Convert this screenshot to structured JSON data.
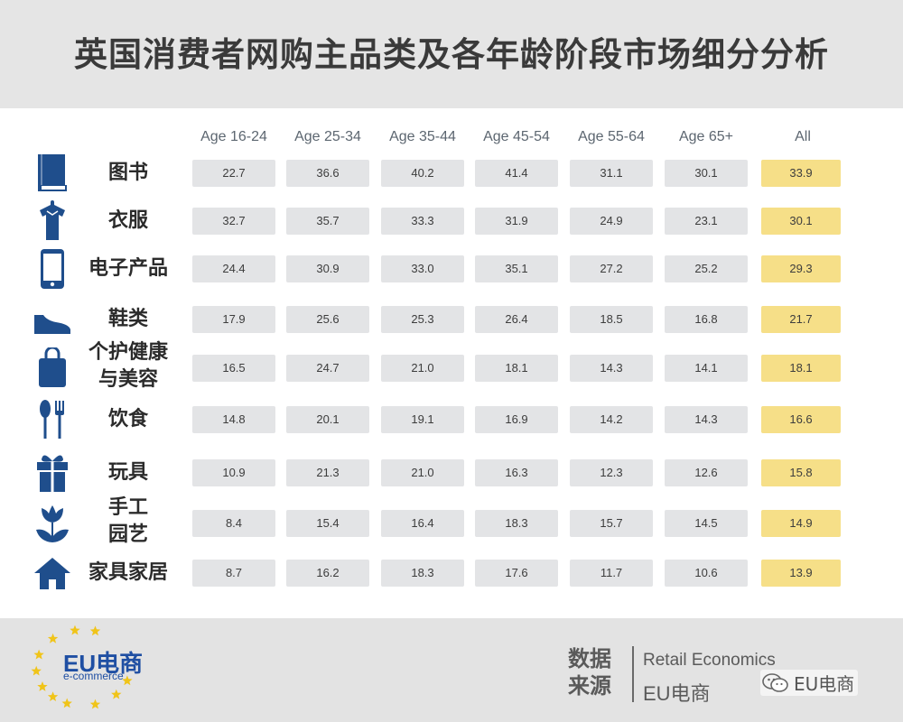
{
  "title": "英国消费者网购主品类及各年龄阶段市场细分分析",
  "colors": {
    "icon": "#1f4e8c",
    "cell": "#e3e4e6",
    "highlight": "#f6df88",
    "star": "#f0c419",
    "logo": "#1f4fa3"
  },
  "chart_data": {
    "type": "table",
    "columns": [
      "Age 16-24",
      "Age 25-34",
      "Age 35-44",
      "Age 45-54",
      "Age 55-64",
      "Age 65+",
      "All"
    ],
    "rows": [
      {
        "label": "图书",
        "icon": "book-icon",
        "values": [
          "22.7",
          "36.6",
          "40.2",
          "41.4",
          "31.1",
          "30.1",
          "33.9"
        ]
      },
      {
        "label": "衣服",
        "icon": "shirt-icon",
        "values": [
          "32.7",
          "35.7",
          "33.3",
          "31.9",
          "24.9",
          "23.1",
          "30.1"
        ]
      },
      {
        "label": "电子产品",
        "icon": "phone-icon",
        "values": [
          "24.4",
          "30.9",
          "33.0",
          "35.1",
          "27.2",
          "25.2",
          "29.3"
        ]
      },
      {
        "label": "鞋类",
        "icon": "shoe-icon",
        "values": [
          "17.9",
          "25.6",
          "25.3",
          "26.4",
          "18.5",
          "16.8",
          "21.7"
        ]
      },
      {
        "label": "个护健康 与美容",
        "label_lines": [
          "个护健康",
          "与美容"
        ],
        "icon": "bag-icon",
        "values": [
          "16.5",
          "24.7",
          "21.0",
          "18.1",
          "14.3",
          "14.1",
          "18.1"
        ]
      },
      {
        "label": "饮食",
        "icon": "utensils-icon",
        "values": [
          "14.8",
          "20.1",
          "19.1",
          "16.9",
          "14.2",
          "14.3",
          "16.6"
        ]
      },
      {
        "label": "玩具",
        "icon": "gift-icon",
        "values": [
          "10.9",
          "21.3",
          "21.0",
          "16.3",
          "12.3",
          "12.6",
          "15.8"
        ]
      },
      {
        "label": "手工 园艺",
        "label_lines": [
          "手工",
          "园艺"
        ],
        "icon": "flower-icon",
        "values": [
          "8.4",
          "15.4",
          "16.4",
          "18.3",
          "15.7",
          "14.5",
          "14.9"
        ]
      },
      {
        "label": "家具家居",
        "icon": "house-icon",
        "values": [
          "8.7",
          "16.2",
          "18.3",
          "17.6",
          "11.7",
          "10.6",
          "13.9"
        ]
      }
    ],
    "highlight_column": "All"
  },
  "footer": {
    "logo_text": "EU电商",
    "logo_sub": "e-commerce",
    "source_label_lines": [
      "数据",
      "来源"
    ],
    "source_names": [
      "Retail Economics",
      "EU电商"
    ],
    "watermark": "EU电商",
    "watermark_icon": "wechat-icon"
  }
}
